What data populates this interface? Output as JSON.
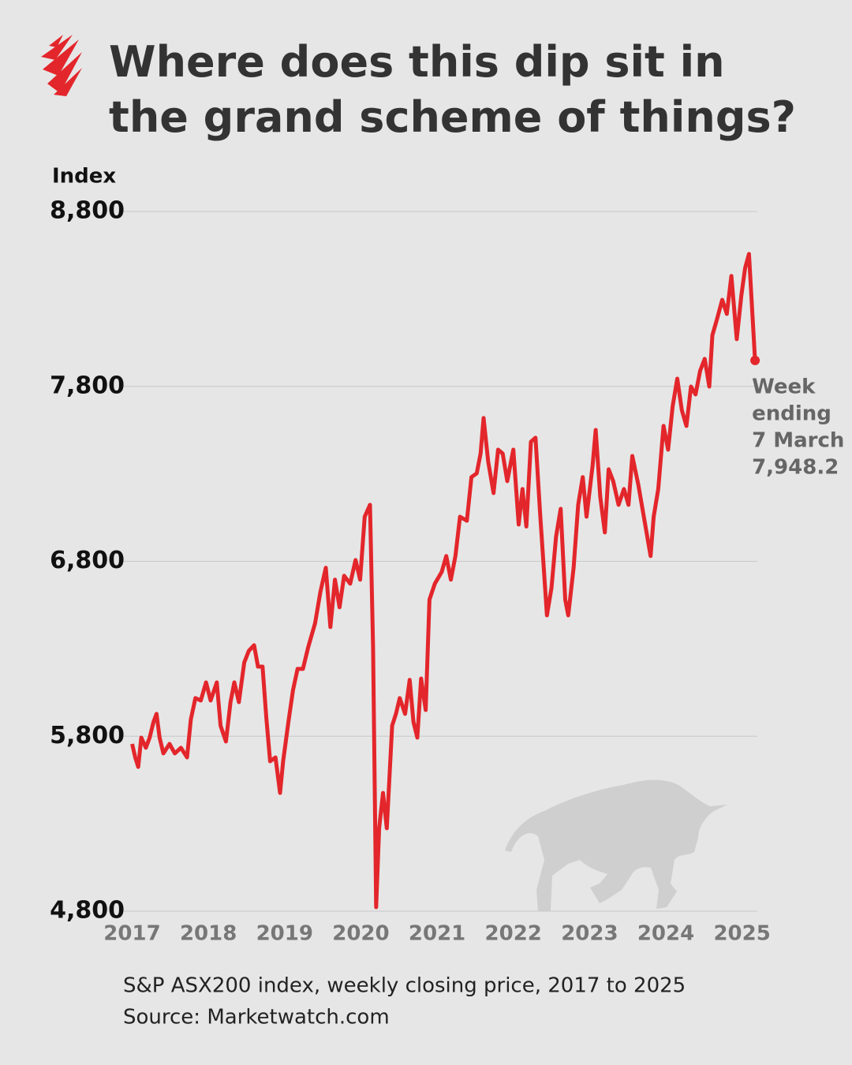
{
  "chart_data": {
    "type": "line",
    "title": "Where does this dip sit in the grand scheme of things?",
    "y_label": "Index",
    "subtitle": "S&P ASX200 index, weekly closing price, 2017 to 2025",
    "source": "Source: Marketwatch.com",
    "annotation": [
      "Week",
      "ending",
      "7 March"
    ],
    "value_label": "7,948.2",
    "color": "#e3262b",
    "grid": true,
    "xlim": [
      2016.85,
      2025.2
    ],
    "xticks": [
      2017,
      2018,
      2019,
      2020,
      2021,
      2022,
      2023,
      2024,
      2025
    ],
    "ylim": [
      4800,
      8800
    ],
    "yticks": [
      {
        "value": 4800,
        "label": "4,800"
      },
      {
        "value": 5800,
        "label": "5,800"
      },
      {
        "value": 6800,
        "label": "6,800"
      },
      {
        "value": 7800,
        "label": "7,800"
      },
      {
        "value": 8800,
        "label": "8,800"
      }
    ],
    "x": [
      2017.0,
      2017.04,
      2017.08,
      2017.12,
      2017.18,
      2017.23,
      2017.28,
      2017.32,
      2017.36,
      2017.41,
      2017.49,
      2017.56,
      2017.64,
      2017.72,
      2017.77,
      2017.83,
      2017.9,
      2017.97,
      2018.03,
      2018.11,
      2018.16,
      2018.23,
      2018.29,
      2018.34,
      2018.4,
      2018.47,
      2018.53,
      2018.6,
      2018.65,
      2018.71,
      2018.76,
      2018.81,
      2018.88,
      2018.94,
      2018.98,
      2019.05,
      2019.11,
      2019.17,
      2019.24,
      2019.31,
      2019.4,
      2019.47,
      2019.54,
      2019.6,
      2019.66,
      2019.72,
      2019.78,
      2019.86,
      2019.93,
      2019.99,
      2020.05,
      2020.12,
      2020.16,
      2020.2,
      2020.24,
      2020.29,
      2020.34,
      2020.41,
      2020.46,
      2020.51,
      2020.58,
      2020.64,
      2020.69,
      2020.74,
      2020.79,
      2020.85,
      2020.9,
      2020.97,
      2021.06,
      2021.12,
      2021.18,
      2021.24,
      2021.3,
      2021.39,
      2021.45,
      2021.52,
      2021.57,
      2021.61,
      2021.67,
      2021.74,
      2021.8,
      2021.86,
      2021.92,
      2022.0,
      2022.07,
      2022.12,
      2022.17,
      2022.23,
      2022.29,
      2022.35,
      2022.44,
      2022.5,
      2022.56,
      2022.62,
      2022.68,
      2022.72,
      2022.79,
      2022.85,
      2022.91,
      2022.96,
      2023.04,
      2023.08,
      2023.14,
      2023.2,
      2023.25,
      2023.31,
      2023.38,
      2023.45,
      2023.51,
      2023.56,
      2023.64,
      2023.72,
      2023.8,
      2023.84,
      2023.9,
      2023.97,
      2024.03,
      2024.09,
      2024.15,
      2024.21,
      2024.27,
      2024.33,
      2024.39,
      2024.45,
      2024.51,
      2024.57,
      2024.61,
      2024.67,
      2024.74,
      2024.8,
      2024.86,
      2024.93,
      2024.99,
      2025.04,
      2025.09,
      2025.17
    ],
    "values": [
      5756,
      5679,
      5625,
      5792,
      5734,
      5792,
      5882,
      5928,
      5792,
      5702,
      5756,
      5702,
      5734,
      5679,
      5896,
      6018,
      6004,
      6108,
      6004,
      6108,
      5860,
      5770,
      5995,
      6108,
      5995,
      6221,
      6288,
      6320,
      6198,
      6198,
      5905,
      5657,
      5679,
      5476,
      5657,
      5882,
      6063,
      6185,
      6185,
      6311,
      6446,
      6627,
      6763,
      6424,
      6695,
      6537,
      6717,
      6672,
      6807,
      6695,
      7055,
      7123,
      6311,
      4823,
      5274,
      5476,
      5274,
      5860,
      5928,
      6018,
      5928,
      6122,
      5882,
      5792,
      6130,
      5950,
      6581,
      6672,
      6739,
      6830,
      6695,
      6830,
      7055,
      7032,
      7281,
      7303,
      7416,
      7619,
      7371,
      7190,
      7438,
      7416,
      7258,
      7438,
      7010,
      7213,
      6999,
      7483,
      7506,
      7077,
      6491,
      6649,
      6942,
      7100,
      6581,
      6491,
      6762,
      7123,
      7281,
      7055,
      7348,
      7551,
      7168,
      6965,
      7326,
      7258,
      7123,
      7213,
      7123,
      7402,
      7236,
      7032,
      6830,
      7055,
      7213,
      7574,
      7438,
      7687,
      7844,
      7664,
      7574,
      7799,
      7754,
      7889,
      7957,
      7799,
      8092,
      8183,
      8295,
      8214,
      8431,
      8070,
      8318,
      8476,
      8557,
      7948.2
    ]
  }
}
